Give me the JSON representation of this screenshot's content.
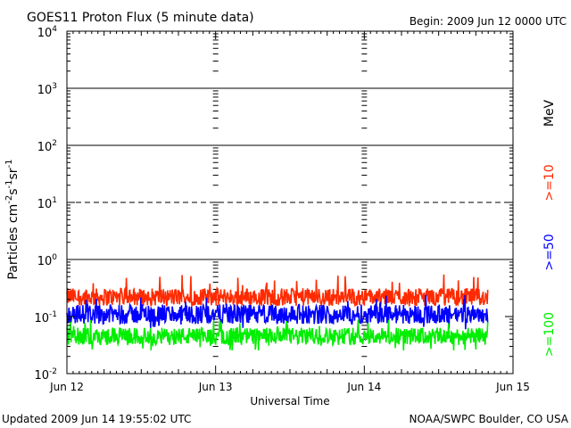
{
  "header": {
    "title": "GOES11 Proton Flux (5 minute data)",
    "begin": "Begin: 2009 Jun 12 0000 UTC"
  },
  "footer": {
    "updated": "Updated 2009 Jun 14 19:55:02 UTC",
    "source": "NOAA/SWPC Boulder, CO USA"
  },
  "chart_data": {
    "type": "line",
    "title": "GOES11 Proton Flux (5 minute data)",
    "xlabel": "Universal Time",
    "ylabel": "Particles cm^-2 s^-1 sr^-1",
    "yscale": "log",
    "ylim": [
      0.01,
      10000
    ],
    "xlim": [
      0,
      3
    ],
    "x_ticks": [
      {
        "x": 0,
        "label": "Jun 12"
      },
      {
        "x": 1,
        "label": "Jun 13"
      },
      {
        "x": 2,
        "label": "Jun 14"
      },
      {
        "x": 3,
        "label": "Jun 15"
      }
    ],
    "y_ticks": [
      {
        "value": 0.01,
        "base": "10",
        "exp": "-2"
      },
      {
        "value": 0.1,
        "base": "10",
        "exp": "-1"
      },
      {
        "value": 1,
        "base": "10",
        "exp": "0"
      },
      {
        "value": 10,
        "base": "10",
        "exp": "1"
      },
      {
        "value": 100,
        "base": "10",
        "exp": "2"
      },
      {
        "value": 1000,
        "base": "10",
        "exp": "3"
      },
      {
        "value": 10000,
        "base": "10",
        "exp": "4"
      }
    ],
    "reference_lines": [
      {
        "value": 1,
        "style": "solid"
      },
      {
        "value": 10,
        "style": "dashed"
      },
      {
        "value": 100,
        "style": "solid"
      },
      {
        "value": 1000,
        "style": "solid"
      }
    ],
    "data_end_day": 2.83,
    "series": [
      {
        "name": ">=10",
        "color": "#ff2a00",
        "typical": 0.22,
        "min": 0.15,
        "max": 0.55
      },
      {
        "name": ">=50",
        "color": "#0000ff",
        "typical": 0.11,
        "min": 0.06,
        "max": 0.25
      },
      {
        "name": ">=100",
        "color": "#00ee00",
        "typical": 0.045,
        "min": 0.025,
        "max": 0.09
      }
    ],
    "unit_label": "MeV"
  }
}
